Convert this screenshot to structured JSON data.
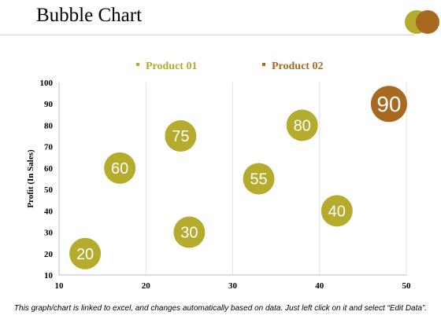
{
  "header": {
    "title": "Bubble Chart"
  },
  "footnote": "This graph/chart is linked to excel, and changes automatically based on data. Just left click on it and select “Edit Data”.",
  "colors": {
    "product01": "#b5ab2d",
    "product02": "#a9681f",
    "grid": "#e4e4e4",
    "axis": "#bdbdbd"
  },
  "chart_data": {
    "type": "scatter",
    "title": "",
    "xlabel": "",
    "ylabel": "Profit  (In Sales)",
    "xlim": [
      10,
      50
    ],
    "ylim": [
      10,
      100
    ],
    "xticks": [
      10,
      20,
      30,
      40,
      50
    ],
    "yticks": [
      10,
      20,
      30,
      40,
      50,
      60,
      70,
      80,
      90,
      100
    ],
    "grid": "vertical",
    "legend": "top-center",
    "series": [
      {
        "name": "Product 01",
        "color": "#b5ab2d",
        "points": [
          {
            "x": 13,
            "y": 20,
            "label": "20"
          },
          {
            "x": 17,
            "y": 60,
            "label": "60"
          },
          {
            "x": 24,
            "y": 75,
            "label": "75"
          },
          {
            "x": 25,
            "y": 30,
            "label": "30"
          },
          {
            "x": 33,
            "y": 55,
            "label": "55"
          },
          {
            "x": 38,
            "y": 80,
            "label": "80"
          },
          {
            "x": 42,
            "y": 40,
            "label": "40"
          }
        ]
      },
      {
        "name": "Product 02",
        "color": "#a9681f",
        "points": [
          {
            "x": 48,
            "y": 90,
            "label": "90"
          }
        ]
      }
    ]
  }
}
